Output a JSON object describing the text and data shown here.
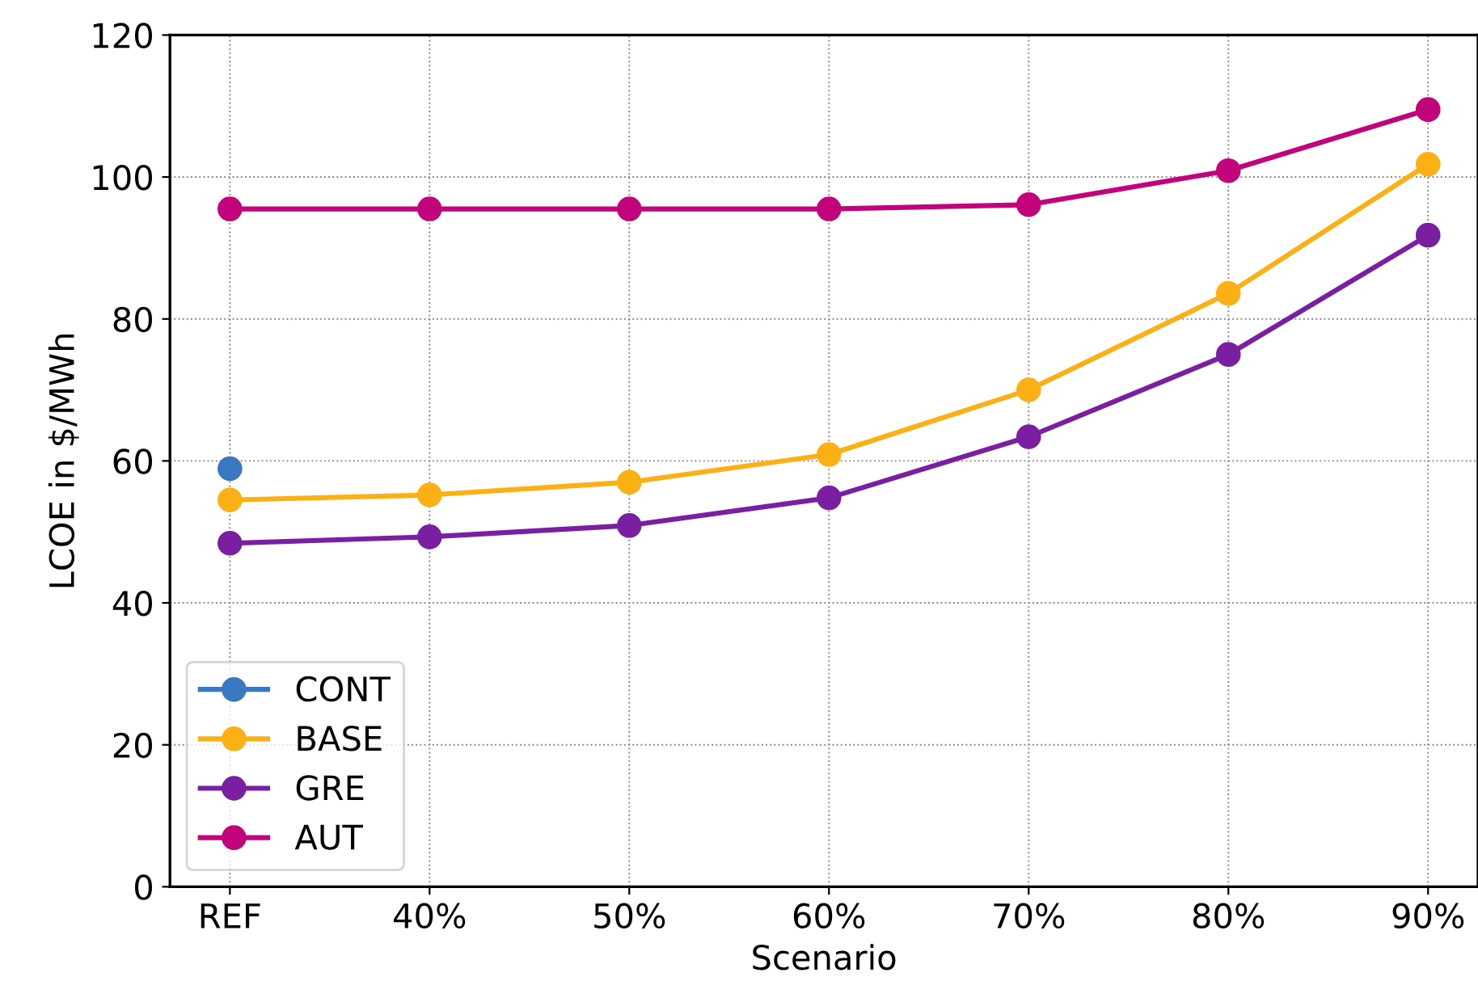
{
  "chart_data": {
    "type": "line",
    "xlabel": "Scenario",
    "ylabel": "LCOE in $/MWh",
    "categories": [
      "REF",
      "40%",
      "50%",
      "60%",
      "70%",
      "80%",
      "90%"
    ],
    "series": [
      {
        "name": "CONT",
        "color": "#3a78c2",
        "values": [
          58.9,
          null,
          null,
          null,
          null,
          null,
          null
        ]
      },
      {
        "name": "BASE",
        "color": "#fbb116",
        "values": [
          54.5,
          55.2,
          57.0,
          60.9,
          70.0,
          83.6,
          101.8
        ]
      },
      {
        "name": "GRE",
        "color": "#7b1fa2",
        "values": [
          48.4,
          49.3,
          50.9,
          54.8,
          63.4,
          75.0,
          91.8
        ]
      },
      {
        "name": "AUT",
        "color": "#c2047c",
        "values": [
          95.5,
          95.5,
          95.5,
          95.5,
          96.1,
          100.9,
          109.5
        ]
      }
    ],
    "ylim": [
      0,
      120
    ],
    "yticks": [
      0,
      20,
      40,
      60,
      80,
      100,
      120
    ],
    "grid": true,
    "legend": "bottom left",
    "marker": "circle",
    "line_style": "solid"
  }
}
